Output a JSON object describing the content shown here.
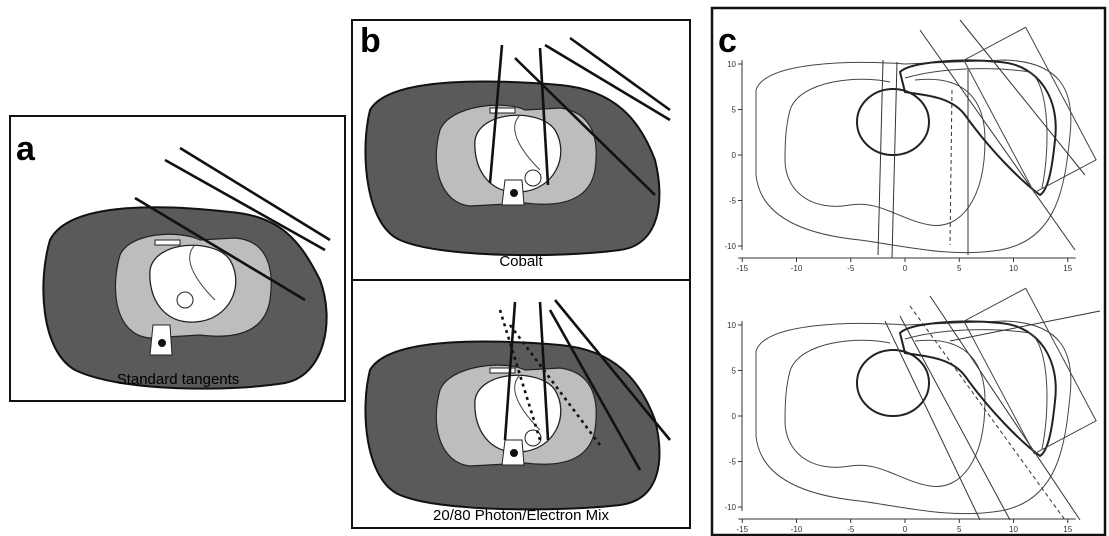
{
  "panels": {
    "a": {
      "label": "a",
      "caption": "Standard tangents"
    },
    "b": {
      "label": "b",
      "top_caption": "Cobalt",
      "bottom_caption": "20/80 Photon/Electron Mix"
    },
    "c": {
      "label": "c",
      "plots": [
        {
          "xticks": [
            -15,
            -10,
            -5,
            0,
            5,
            10,
            15
          ],
          "yticks": [
            10,
            5,
            0,
            -5,
            -10
          ]
        },
        {
          "xticks": [
            -15,
            -10,
            -5,
            0,
            5,
            10,
            15
          ],
          "yticks": [
            10,
            5,
            0,
            -5,
            -10
          ]
        }
      ]
    }
  }
}
